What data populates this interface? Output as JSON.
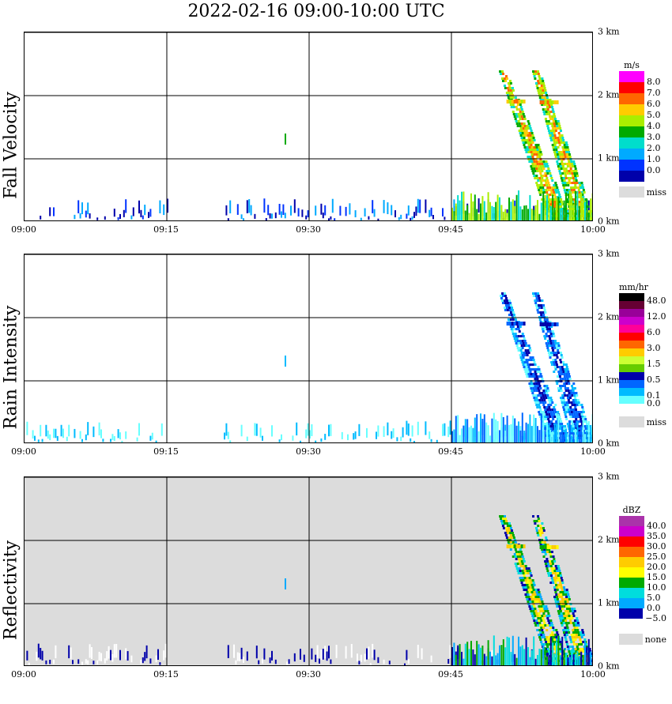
{
  "title": "2022-02-16   09:00-10:00 UTC",
  "chart_data": [
    {
      "type": "heatmap",
      "title": "Fall Velocity",
      "ylabel": "Fall Velocity",
      "xticks": [
        "09:00",
        "09:15",
        "09:30",
        "09:45",
        "10:00"
      ],
      "yticks": [
        "0 km",
        "1 km",
        "2 km",
        "3 km"
      ],
      "xlim_min": [
        0,
        60
      ],
      "ylim_km": [
        0,
        3
      ],
      "grid": true,
      "background": "#ffffff",
      "colorbar": {
        "unit": "m/s",
        "labels": [
          "8.0",
          "7.0",
          "6.0",
          "5.0",
          "4.0",
          "3.0",
          "2.0",
          "1.0",
          "0.0"
        ],
        "colors": [
          "#ff00ff",
          "#ff0000",
          "#ff6600",
          "#ffcc00",
          "#aaee00",
          "#00aa00",
          "#00ddcc",
          "#00aaff",
          "#0033ff",
          "#0000aa"
        ],
        "missing_label": "miss"
      }
    },
    {
      "type": "heatmap",
      "title": "Rain Intensity",
      "ylabel": "Rain Intensity",
      "xticks": [
        "09:00",
        "09:15",
        "09:30",
        "09:45",
        "10:00"
      ],
      "yticks": [
        "0 km",
        "1 km",
        "2 km",
        "3 km"
      ],
      "xlim_min": [
        0,
        60
      ],
      "ylim_km": [
        0,
        3
      ],
      "grid": true,
      "background": "#ffffff",
      "colorbar": {
        "unit": "mm/hr",
        "labels": [
          "48.0",
          "",
          "12.0",
          "",
          "6.0",
          "",
          "3.0",
          "",
          "1.5",
          "",
          "0.5",
          "",
          "0.1",
          "0.0"
        ],
        "colors": [
          "#000000",
          "#660033",
          "#990099",
          "#cc00cc",
          "#ff0099",
          "#ff0000",
          "#ff6600",
          "#ffcc00",
          "#ccff33",
          "#66cc00",
          "#0000aa",
          "#0066ff",
          "#00bbff",
          "#66ffff",
          "#ffffff"
        ],
        "missing_label": "miss"
      }
    },
    {
      "type": "heatmap",
      "title": "Reflectivity",
      "ylabel": "Reflectivity",
      "xticks": [
        "09:00",
        "09:15",
        "09:30",
        "09:45",
        "10:00"
      ],
      "yticks": [
        "0 km",
        "1 km",
        "2 km",
        "3 km"
      ],
      "xlim_min": [
        0,
        60
      ],
      "ylim_km": [
        0,
        3
      ],
      "grid": true,
      "background": "#dcdcdc",
      "colorbar": {
        "unit": "dBZ",
        "labels": [
          "40.0",
          "35.0",
          "30.0",
          "25.0",
          "20.0",
          "15.0",
          "10.0",
          "5.0",
          "0.0",
          "−5.0"
        ],
        "colors": [
          "#aa33aa",
          "#cc00cc",
          "#ff0000",
          "#ff6600",
          "#ffcc00",
          "#ffff00",
          "#00aa00",
          "#00dddd",
          "#00aaff",
          "#0000aa",
          "#ffffff"
        ],
        "missing_label": "none"
      }
    }
  ]
}
